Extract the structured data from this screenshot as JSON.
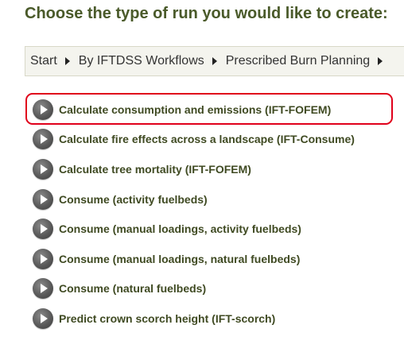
{
  "heading": "Choose the type of run you would like to create:",
  "breadcrumb": {
    "items": [
      {
        "label": "Start"
      },
      {
        "label": "By IFTDSS Workflows"
      },
      {
        "label": "Prescribed Burn Planning"
      }
    ],
    "separator_icon": "triangle-right-icon"
  },
  "run_types": {
    "icon": "play-circle-icon",
    "items": [
      {
        "label": "Calculate consumption and emissions (IFT-FOFEM)",
        "highlighted": true
      },
      {
        "label": "Calculate fire effects across a landscape (IFT-Consume)"
      },
      {
        "label": "Calculate tree mortality (IFT-FOFEM)"
      },
      {
        "label": "Consume (activity fuelbeds)"
      },
      {
        "label": "Consume (manual loadings, activity fuelbeds)"
      },
      {
        "label": "Consume (manual loadings, natural fuelbeds)"
      },
      {
        "label": "Consume (natural fuelbeds)"
      },
      {
        "label": "Predict crown scorch height (IFT-scorch)"
      }
    ]
  },
  "colors": {
    "heading": "#4a5a2a",
    "item_text": "#3f4a22",
    "highlight_border": "#e0001b"
  }
}
